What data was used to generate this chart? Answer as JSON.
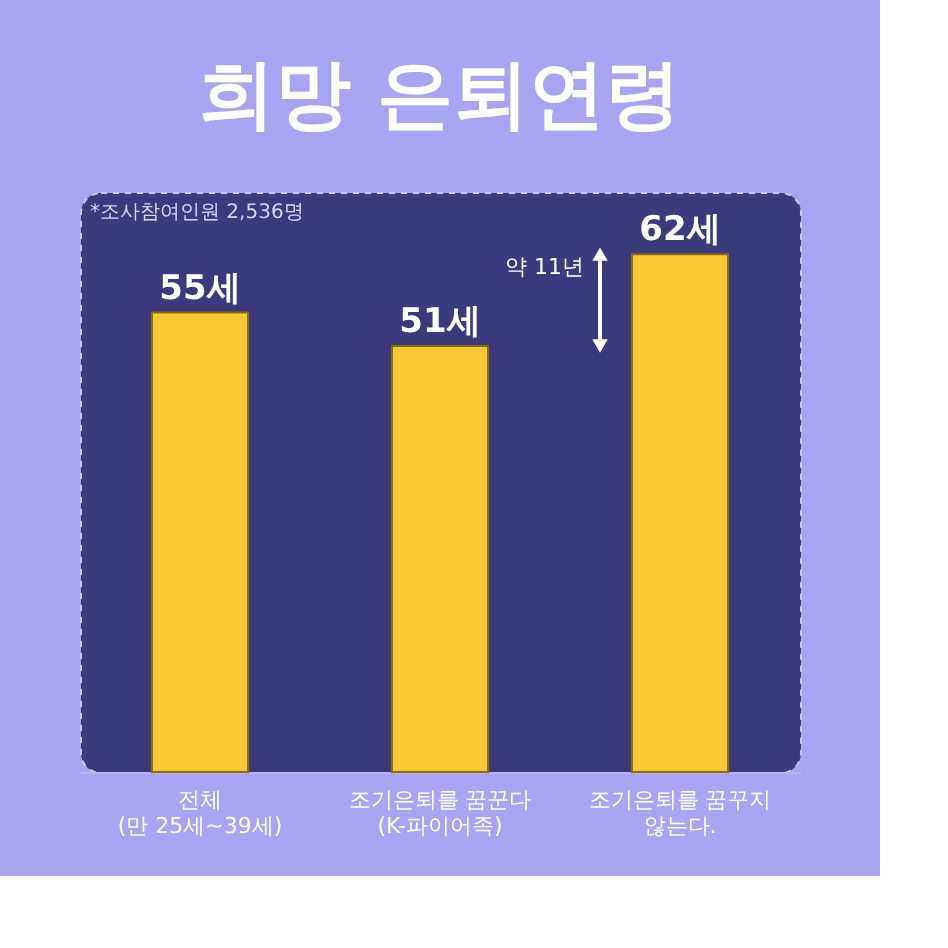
{
  "chart_data": {
    "type": "bar",
    "title": "희망 은퇴연령",
    "categories": [
      "전체\n(만 25세~39세)",
      "조기은퇴를 꿈꾼다\n(K-파이어족)",
      "조기은퇴를 꿈꾸지\n않는다."
    ],
    "values": [
      55,
      51,
      62
    ],
    "color": "#f7c930",
    "value_labels": [
      "55세",
      "51세",
      "62세"
    ],
    "annotations": [
      "*조사참여인원 2,536명",
      "약 11년"
    ],
    "grid": false
  }
}
